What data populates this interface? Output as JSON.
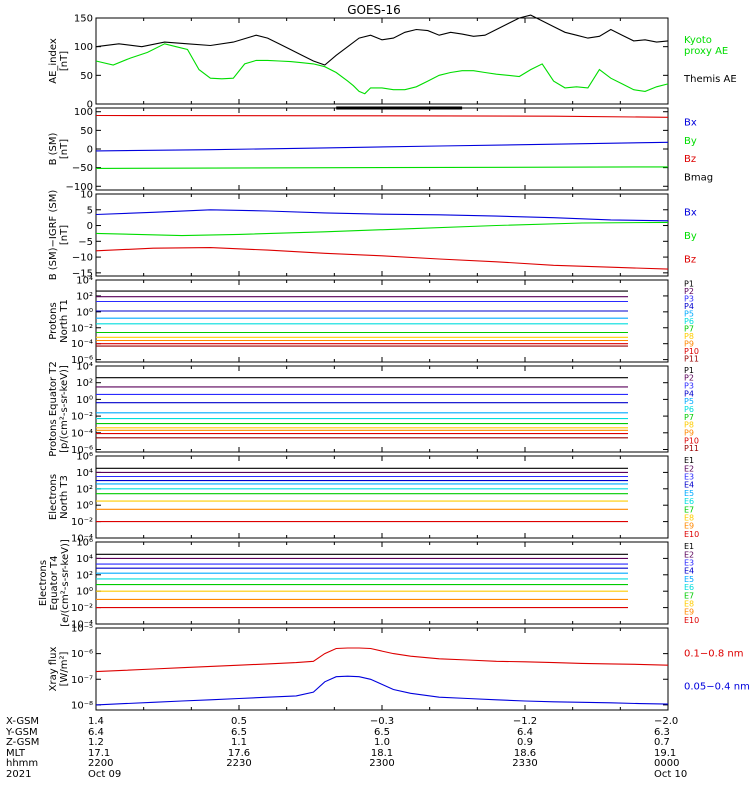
{
  "title": "GOES-16",
  "chart_data": [
    {
      "type": "line",
      "ylabel": "AE_index [nT]",
      "ylim": [
        0,
        150
      ],
      "ticks": [
        {
          "v": 0,
          "t": "0"
        },
        {
          "v": 50,
          "t": "50"
        },
        {
          "v": 100,
          "t": "100"
        },
        {
          "v": 150,
          "t": "150"
        }
      ],
      "series": [
        {
          "name": "Kyoto proxy AE",
          "label_lines": [
            "Kyoto",
            "proxy AE"
          ],
          "color": "#00dd00",
          "x": [
            0,
            3,
            6,
            9,
            12,
            14,
            16,
            18,
            20,
            22,
            24,
            26,
            28,
            30,
            32,
            34,
            36,
            38,
            40,
            42,
            44,
            45,
            46,
            47,
            48,
            50,
            52,
            54,
            56,
            58,
            60,
            62,
            64,
            66,
            68,
            70,
            72,
            74,
            76,
            78,
            80,
            82,
            84,
            86,
            88,
            90,
            92,
            94,
            96,
            98,
            100
          ],
          "y": [
            75,
            68,
            80,
            90,
            105,
            100,
            95,
            60,
            45,
            44,
            45,
            70,
            76,
            76,
            75,
            74,
            72,
            70,
            65,
            55,
            40,
            32,
            22,
            18,
            28,
            28,
            25,
            25,
            30,
            40,
            50,
            55,
            58,
            58,
            55,
            52,
            50,
            48,
            60,
            70,
            40,
            28,
            30,
            28,
            60,
            45,
            35,
            25,
            22,
            30,
            35
          ]
        },
        {
          "name": "Themis AE",
          "label_lines": [
            "Themis AE"
          ],
          "color": "#000000",
          "x": [
            0,
            4,
            8,
            12,
            16,
            20,
            24,
            28,
            30,
            32,
            34,
            36,
            38,
            40,
            42,
            44,
            46,
            48,
            50,
            52,
            54,
            56,
            58,
            60,
            62,
            64,
            66,
            68,
            70,
            72,
            74,
            76,
            78,
            80,
            82,
            84,
            86,
            88,
            90,
            92,
            94,
            96,
            98,
            100
          ],
          "y": [
            100,
            105,
            100,
            108,
            105,
            102,
            108,
            120,
            115,
            105,
            95,
            85,
            75,
            68,
            85,
            100,
            115,
            120,
            112,
            115,
            125,
            130,
            128,
            120,
            125,
            122,
            118,
            120,
            130,
            140,
            150,
            155,
            145,
            135,
            125,
            120,
            115,
            118,
            130,
            120,
            110,
            112,
            108,
            110
          ]
        }
      ]
    },
    {
      "type": "line",
      "ylabel": "B (SM) [nT]",
      "ylim": [
        -110,
        110
      ],
      "ticks": [
        {
          "v": -100,
          "t": "−100"
        },
        {
          "v": -50,
          "t": "−50"
        },
        {
          "v": 0,
          "t": "0"
        },
        {
          "v": 50,
          "t": "50"
        },
        {
          "v": 100,
          "t": "100"
        }
      ],
      "series": [
        {
          "name": "Bx",
          "color": "#0000dd",
          "x": [
            0,
            20,
            40,
            60,
            80,
            100
          ],
          "y": [
            -5,
            -2,
            3,
            8,
            13,
            18
          ]
        },
        {
          "name": "By",
          "color": "#00dd00",
          "x": [
            0,
            50,
            100
          ],
          "y": [
            -52,
            -50,
            -48
          ]
        },
        {
          "name": "Bz",
          "color": "#dd0000",
          "x": [
            0,
            50,
            80,
            100
          ],
          "y": [
            90,
            89,
            88,
            85
          ]
        },
        {
          "name": "Bmag",
          "color": "#000000",
          "x": [
            42,
            64
          ],
          "y": [
            110,
            110
          ]
        }
      ]
    },
    {
      "type": "line",
      "ylabel": "B (SM)−IGRF (SM) [nT]",
      "ylim": [
        -16,
        10
      ],
      "ticks": [
        {
          "v": -15,
          "t": "−15"
        },
        {
          "v": -10,
          "t": "−10"
        },
        {
          "v": -5,
          "t": "−5"
        },
        {
          "v": 0,
          "t": "0"
        },
        {
          "v": 5,
          "t": "5"
        },
        {
          "v": 10,
          "t": "10"
        }
      ],
      "series": [
        {
          "name": "Bx",
          "color": "#0000dd",
          "x": [
            0,
            10,
            20,
            30,
            40,
            50,
            60,
            70,
            80,
            90,
            100
          ],
          "y": [
            3.5,
            4.2,
            5,
            4.6,
            4,
            3.6,
            3.4,
            3,
            2.5,
            1.8,
            1.5
          ]
        },
        {
          "name": "By",
          "color": "#00dd00",
          "x": [
            0,
            15,
            25,
            40,
            55,
            70,
            85,
            100
          ],
          "y": [
            -2.5,
            -3.2,
            -2.8,
            -2,
            -1,
            0,
            0.8,
            1
          ]
        },
        {
          "name": "Bz",
          "color": "#dd0000",
          "x": [
            0,
            10,
            20,
            30,
            40,
            50,
            60,
            70,
            80,
            90,
            100
          ],
          "y": [
            -8,
            -7.2,
            -7,
            -7.8,
            -8.8,
            -9.6,
            -10.6,
            -11.5,
            -12.6,
            -13.2,
            -13.8
          ]
        }
      ]
    },
    {
      "type": "line",
      "ylabel": "Protons North T1",
      "log": true,
      "ylim": [
        -6.3,
        4
      ],
      "ticks": [
        {
          "v": 4,
          "t": "10⁴"
        },
        {
          "v": 2,
          "t": "10²"
        },
        {
          "v": 0,
          "t": "10⁰"
        },
        {
          "v": -2,
          "t": "10⁻²"
        },
        {
          "v": -4,
          "t": "10⁻⁴"
        },
        {
          "v": -6,
          "t": "10⁻⁶"
        }
      ],
      "xrange": [
        0,
        93
      ],
      "series": [
        {
          "name": "P1",
          "color": "#000000",
          "level": 2.6
        },
        {
          "name": "P2",
          "color": "#5a005a",
          "level": 1.9
        },
        {
          "name": "P3",
          "color": "#2a2aff",
          "level": 1.3
        },
        {
          "name": "P4",
          "color": "#0000cc",
          "level": 0.1
        },
        {
          "name": "P5",
          "color": "#00aaff",
          "level": -0.8
        },
        {
          "name": "P6",
          "color": "#00dddd",
          "level": -1.5
        },
        {
          "name": "P7",
          "color": "#00cc00",
          "level": -2.6
        },
        {
          "name": "P8",
          "color": "#ffcc00",
          "level": -3.2
        },
        {
          "name": "P9",
          "color": "#ff8800",
          "level": -3.6
        },
        {
          "name": "P10",
          "color": "#dd0000",
          "level": -4.0
        },
        {
          "name": "P11",
          "color": "#990000",
          "level": -4.3
        }
      ]
    },
    {
      "type": "line",
      "ylabel": "Protons Equator T2 [p/(cm²-s-sr-keV)]",
      "log": true,
      "ylim": [
        -6.3,
        4
      ],
      "ticks": [
        {
          "v": 4,
          "t": "10⁴"
        },
        {
          "v": 2,
          "t": "10²"
        },
        {
          "v": 0,
          "t": "10⁰"
        },
        {
          "v": -2,
          "t": "10⁻²"
        },
        {
          "v": -4,
          "t": "10⁻⁴"
        },
        {
          "v": -6,
          "t": "10⁻⁶"
        }
      ],
      "xrange": [
        0,
        93
      ],
      "series": [
        {
          "name": "P1",
          "color": "#000000",
          "level": 2.6
        },
        {
          "name": "P2",
          "color": "#5a005a",
          "level": 1.5
        },
        {
          "name": "P3",
          "color": "#2a2aff",
          "level": 0.6
        },
        {
          "name": "P4",
          "color": "#0000cc",
          "level": -0.4
        },
        {
          "name": "P5",
          "color": "#00aaff",
          "level": -1.6
        },
        {
          "name": "P6",
          "color": "#00dddd",
          "level": -2.3
        },
        {
          "name": "P7",
          "color": "#00cc00",
          "level": -2.9
        },
        {
          "name": "P8",
          "color": "#ffcc00",
          "level": -3.4
        },
        {
          "name": "P9",
          "color": "#ff8800",
          "level": -3.7
        },
        {
          "name": "P10",
          "color": "#dd0000",
          "level": -4.1
        },
        {
          "name": "P11",
          "color": "#990000",
          "level": -4.6
        }
      ]
    },
    {
      "type": "line",
      "ylabel": "Electrons North T3",
      "log": true,
      "ylim": [
        -4,
        6
      ],
      "ticks": [
        {
          "v": 6,
          "t": "10⁶"
        },
        {
          "v": 4,
          "t": "10⁴"
        },
        {
          "v": 2,
          "t": "10²"
        },
        {
          "v": 0,
          "t": "10⁰"
        },
        {
          "v": -2,
          "t": "10⁻²"
        },
        {
          "v": -4,
          "t": "10⁻⁴"
        }
      ],
      "xrange": [
        0,
        93
      ],
      "series": [
        {
          "name": "E1",
          "color": "#000000",
          "level": 4.5
        },
        {
          "name": "E2",
          "color": "#5a005a",
          "level": 4.0
        },
        {
          "name": "E3",
          "color": "#2a2aff",
          "level": 3.5
        },
        {
          "name": "E4",
          "color": "#0000cc",
          "level": 3.0
        },
        {
          "name": "E5",
          "color": "#00aaff",
          "level": 2.6
        },
        {
          "name": "E6",
          "color": "#00dddd",
          "level": 2.0
        },
        {
          "name": "E7",
          "color": "#00cc00",
          "level": 1.4
        },
        {
          "name": "E8",
          "color": "#ffcc00",
          "level": 0.5
        },
        {
          "name": "E9",
          "color": "#ff8800",
          "level": -0.5
        },
        {
          "name": "E10",
          "color": "#dd0000",
          "level": -2.0
        }
      ]
    },
    {
      "type": "line",
      "ylabel": "Electrons Equator T4 [e/(cm²-s-sr-keV)]",
      "log": true,
      "ylim": [
        -4,
        6
      ],
      "ticks": [
        {
          "v": 6,
          "t": "10⁶"
        },
        {
          "v": 4,
          "t": "10⁴"
        },
        {
          "v": 2,
          "t": "10²"
        },
        {
          "v": 0,
          "t": "10⁰"
        },
        {
          "v": -2,
          "t": "10⁻²"
        },
        {
          "v": -4,
          "t": "10⁻⁴"
        }
      ],
      "xrange": [
        0,
        93
      ],
      "series": [
        {
          "name": "E1",
          "color": "#000000",
          "level": 4.5
        },
        {
          "name": "E2",
          "color": "#5a005a",
          "level": 4.0
        },
        {
          "name": "E3",
          "color": "#2a2aff",
          "level": 3.3
        },
        {
          "name": "E4",
          "color": "#0000cc",
          "level": 2.8
        },
        {
          "name": "E5",
          "color": "#00aaff",
          "level": 2.2
        },
        {
          "name": "E6",
          "color": "#00dddd",
          "level": 1.5
        },
        {
          "name": "E7",
          "color": "#00cc00",
          "level": 0.8
        },
        {
          "name": "E8",
          "color": "#ffcc00",
          "level": 0.0
        },
        {
          "name": "E9",
          "color": "#ff8800",
          "level": -1.0
        },
        {
          "name": "E10",
          "color": "#dd0000",
          "level": -2.0
        }
      ]
    },
    {
      "type": "line",
      "ylabel": "Xray flux [W/m²]",
      "log": true,
      "ylim": [
        -8.2,
        -5
      ],
      "ticks": [
        {
          "v": -5,
          "t": "10⁻⁵"
        },
        {
          "v": -6,
          "t": "10⁻⁶"
        },
        {
          "v": -7,
          "t": "10⁻⁷"
        },
        {
          "v": -8,
          "t": "10⁻⁸"
        }
      ],
      "series": [
        {
          "name": "0.1−0.8 nm",
          "color": "#dd0000",
          "x": [
            0,
            5,
            10,
            15,
            20,
            25,
            30,
            35,
            38,
            40,
            42,
            44,
            46,
            48,
            50,
            52,
            55,
            60,
            65,
            70,
            75,
            80,
            85,
            90,
            95,
            100
          ],
          "y": [
            -6.7,
            -6.65,
            -6.6,
            -6.55,
            -6.5,
            -6.45,
            -6.4,
            -6.35,
            -6.3,
            -6.0,
            -5.8,
            -5.78,
            -5.78,
            -5.8,
            -5.9,
            -6.0,
            -6.1,
            -6.2,
            -6.25,
            -6.3,
            -6.32,
            -6.35,
            -6.38,
            -6.4,
            -6.42,
            -6.45
          ]
        },
        {
          "name": "0.05−0.4 nm",
          "color": "#0000dd",
          "x": [
            0,
            5,
            10,
            15,
            20,
            25,
            30,
            35,
            38,
            40,
            42,
            44,
            46,
            48,
            50,
            52,
            55,
            60,
            65,
            70,
            75,
            80,
            85,
            90,
            95,
            100
          ],
          "y": [
            -8.0,
            -7.95,
            -7.9,
            -7.85,
            -7.8,
            -7.75,
            -7.7,
            -7.65,
            -7.5,
            -7.1,
            -6.9,
            -6.88,
            -6.9,
            -7.0,
            -7.2,
            -7.4,
            -7.55,
            -7.7,
            -7.75,
            -7.8,
            -7.85,
            -7.88,
            -7.9,
            -7.92,
            -7.95,
            -7.97
          ]
        }
      ]
    }
  ],
  "ephemeris": {
    "row_labels": [
      "X-GSM",
      "Y-GSM",
      "Z-GSM",
      "MLT",
      "hhmm",
      "2021"
    ],
    "columns": [
      {
        "x": 0,
        "values": [
          "1.4",
          "6.4",
          "1.2",
          "17.1",
          "2200",
          "Oct 09"
        ]
      },
      {
        "x": 25,
        "values": [
          "0.5",
          "6.5",
          "1.1",
          "17.6",
          "2230",
          ""
        ]
      },
      {
        "x": 50,
        "values": [
          "−0.3",
          "6.5",
          "1.0",
          "18.1",
          "2300",
          ""
        ]
      },
      {
        "x": 75,
        "values": [
          "−1.2",
          "6.4",
          "0.9",
          "18.6",
          "2330",
          ""
        ]
      },
      {
        "x": 100,
        "values": [
          "−2.0",
          "6.3",
          "0.7",
          "19.1",
          "0000",
          "Oct 10"
        ]
      }
    ]
  }
}
